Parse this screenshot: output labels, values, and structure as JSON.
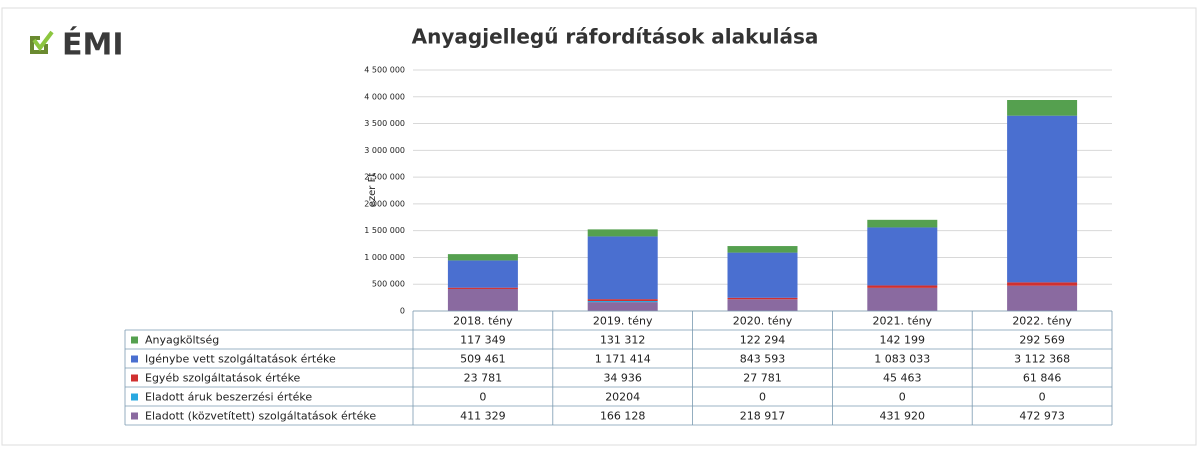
{
  "logo": "ÉMI",
  "chart_data": {
    "type": "stacked_bar",
    "title": "Anyagjellegű ráfordítások alakulása",
    "y_label": "ezer Ft",
    "categories": [
      "2018. tény",
      "2019. tény",
      "2020. tény",
      "2021. tény",
      "2022. tény"
    ],
    "ylim": [
      0,
      4500000
    ],
    "yticks": [
      0,
      {
        "value": 500000,
        "label": "500 000"
      },
      {
        "value": 1000000,
        "label": "1 000 000"
      },
      {
        "value": 1500000,
        "label": "1 500 000"
      },
      {
        "value": 2000000,
        "label": "2 000 000"
      },
      {
        "value": 2500000,
        "label": "2 500 000"
      },
      {
        "value": 3000000,
        "label": "3 000 000"
      },
      {
        "value": 3500000,
        "label": "3 500 000"
      },
      {
        "value": 4000000,
        "label": "4 000 000"
      },
      {
        "value": 4500000,
        "label": "4 500 000"
      }
    ],
    "grid": true,
    "series": [
      {
        "name": "Anyagköltség",
        "color": "#55a04f",
        "values": [
          117349,
          131312,
          122294,
          142199,
          292569
        ],
        "value_labels": [
          "117 349",
          "131 312",
          "122 294",
          "142 199",
          "292 569"
        ]
      },
      {
        "name": "Igénybe vett szolgáltatások értéke",
        "color": "#4a6fd0",
        "values": [
          509461,
          1171414,
          843593,
          1083033,
          3112368
        ],
        "value_labels": [
          "509 461",
          "1 171 414",
          "843 593",
          "1 083 033",
          "3 112 368"
        ]
      },
      {
        "name": "Egyéb szolgáltatások értéke",
        "color": "#d03030",
        "values": [
          23781,
          34936,
          27781,
          45463,
          61846
        ],
        "value_labels": [
          "23 781",
          "34 936",
          "27 781",
          "45 463",
          "61 846"
        ]
      },
      {
        "name": "Eladott áruk beszerzési értéke",
        "color": "#29a8e0",
        "values": [
          0,
          20204,
          0,
          0,
          0
        ]
      },
      {
        "name": "Eladott (közvetített) szolgáltatások értéke",
        "color": "#8a6aa0",
        "values": [
          411329,
          166128,
          218917,
          431920,
          472973
        ],
        "value_labels": [
          "411 329",
          "166 128",
          "218 917",
          "431 920",
          "472 973"
        ]
      }
    ]
  }
}
